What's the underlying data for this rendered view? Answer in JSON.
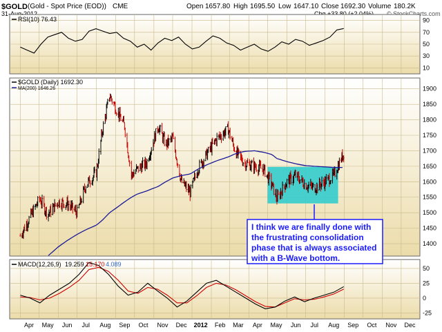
{
  "header": {
    "symbol": "$GOLD",
    "name": "(Gold - Spot Price (EOD))",
    "exchange": "CME",
    "date": "31-Aug-2012",
    "open_label": "Open",
    "open": "1657.80",
    "high_label": "High",
    "high": "1695.50",
    "low_label": "Low",
    "low": "1647.10",
    "close_label": "Close",
    "close": "1692.30",
    "volume_label": "Volume",
    "volume": "180.2K",
    "change": "Chg +33.80 (+2.04%)",
    "watermark": "© StockCharts.com"
  },
  "annotation": {
    "lines": [
      "I think we are finally done with",
      "the frustrating consolidation",
      "phase that is always associated",
      "with a B-Wave bottom."
    ]
  },
  "colors": {
    "panel_bg_top": "#ffffff",
    "panel_bg_bottom": "#ecdcaa",
    "up": "#000000",
    "down": "#cc0000",
    "ma": "#1a1a99",
    "rsi": "#000000",
    "macd": "#000000",
    "signal": "#cc0000",
    "highlight": "#33cccc",
    "annotation_text": "#1a1aff",
    "annotation_border": "#1a1aff"
  },
  "chart_data": [
    {
      "type": "line",
      "name": "RSI panel",
      "legend": "RSI(10) 76.43",
      "series": [
        {
          "name": "RSI(10)",
          "values": [
            45,
            40,
            35,
            50,
            62,
            66,
            70,
            60,
            55,
            58,
            72,
            76,
            72,
            68,
            70,
            60,
            55,
            45,
            50,
            40,
            52,
            60,
            56,
            62,
            50,
            42,
            45,
            55,
            64,
            60,
            52,
            48,
            40,
            45,
            50,
            42,
            38,
            45,
            54,
            50,
            58,
            55,
            48,
            52,
            56,
            62,
            74,
            76.43
          ],
          "last": 76.43
        }
      ],
      "ylim": [
        0,
        100
      ],
      "yticks": [
        10,
        30,
        50,
        70,
        90
      ]
    },
    {
      "type": "line",
      "name": "Price panel",
      "legend": [
        "$GOLD (Daily) 1692.30",
        "MA(200) 1646.26"
      ],
      "x": [
        "2011-04-01",
        "2011-04-15",
        "2011-05-02",
        "2011-05-15",
        "2011-06-01",
        "2011-06-15",
        "2011-07-01",
        "2011-07-15",
        "2011-08-01",
        "2011-08-10",
        "2011-08-22",
        "2011-09-05",
        "2011-09-15",
        "2011-09-26",
        "2011-10-05",
        "2011-10-20",
        "2011-11-08",
        "2011-11-20",
        "2011-12-01",
        "2011-12-15",
        "2011-12-29",
        "2012-01-10",
        "2012-01-25",
        "2012-02-10",
        "2012-02-28",
        "2012-03-10",
        "2012-03-25",
        "2012-04-10",
        "2012-04-25",
        "2012-05-08",
        "2012-05-16",
        "2012-06-01",
        "2012-06-15",
        "2012-07-01",
        "2012-07-15",
        "2012-08-01",
        "2012-08-15",
        "2012-08-31"
      ],
      "series": [
        {
          "name": "$GOLD (Daily)",
          "values": [
            1425,
            1480,
            1545,
            1495,
            1535,
            1530,
            1500,
            1590,
            1630,
            1760,
            1880,
            1820,
            1780,
            1620,
            1640,
            1660,
            1780,
            1720,
            1740,
            1600,
            1565,
            1640,
            1690,
            1740,
            1770,
            1700,
            1660,
            1650,
            1640,
            1590,
            1545,
            1600,
            1620,
            1590,
            1580,
            1600,
            1620,
            1692.3
          ]
        },
        {
          "name": "MA(200)",
          "values": [
            null,
            null,
            null,
            1360,
            1390,
            1410,
            1430,
            1445,
            1460,
            1475,
            1500,
            1520,
            1535,
            1550,
            1560,
            1570,
            1585,
            1600,
            1612,
            1620,
            1625,
            1640,
            1655,
            1668,
            1680,
            1690,
            1698,
            1700,
            1695,
            1688,
            1675,
            1665,
            1658,
            1652,
            1650,
            1648,
            1646,
            1646.26
          ]
        }
      ],
      "ylim": [
        1360,
        1935
      ],
      "yticks": [
        1400,
        1450,
        1500,
        1550,
        1600,
        1650,
        1700,
        1750,
        1800,
        1850,
        1900
      ],
      "x_labels": [
        "Apr",
        "May",
        "Jun",
        "Jul",
        "Aug",
        "Sep",
        "Oct",
        "Nov",
        "Dec",
        "2012",
        "Feb",
        "Mar",
        "Apr",
        "May",
        "Jun",
        "Jul",
        "Aug",
        "Sep",
        "Oct",
        "Nov",
        "Dec"
      ],
      "highlight_box": {
        "x_from": "2012-05-01",
        "x_to": "2012-08-22",
        "y_from": 1530,
        "y_to": 1648
      }
    },
    {
      "type": "line",
      "name": "MACD panel",
      "legend": {
        "label": "MACD(12,26,9)",
        "macd": "19.259",
        "signal": "15.170",
        "hist": "4.089"
      },
      "series": [
        {
          "name": "MACD",
          "values": [
            5,
            0,
            -8,
            5,
            15,
            25,
            40,
            60,
            55,
            40,
            20,
            5,
            10,
            25,
            12,
            0,
            -15,
            -5,
            10,
            25,
            30,
            20,
            10,
            0,
            -10,
            -18,
            -15,
            -5,
            2,
            -6,
            0,
            5,
            10,
            19.259
          ]
        },
        {
          "name": "Signal",
          "values": [
            2,
            1,
            -3,
            0,
            8,
            18,
            30,
            48,
            52,
            45,
            30,
            12,
            8,
            18,
            15,
            5,
            -8,
            -8,
            4,
            18,
            25,
            22,
            14,
            4,
            -6,
            -14,
            -15,
            -8,
            -1,
            -3,
            -2,
            2,
            7,
            15.17
          ]
        }
      ],
      "ylim": [
        -35,
        65
      ],
      "yticks": [
        -25,
        0,
        25,
        50
      ]
    }
  ]
}
